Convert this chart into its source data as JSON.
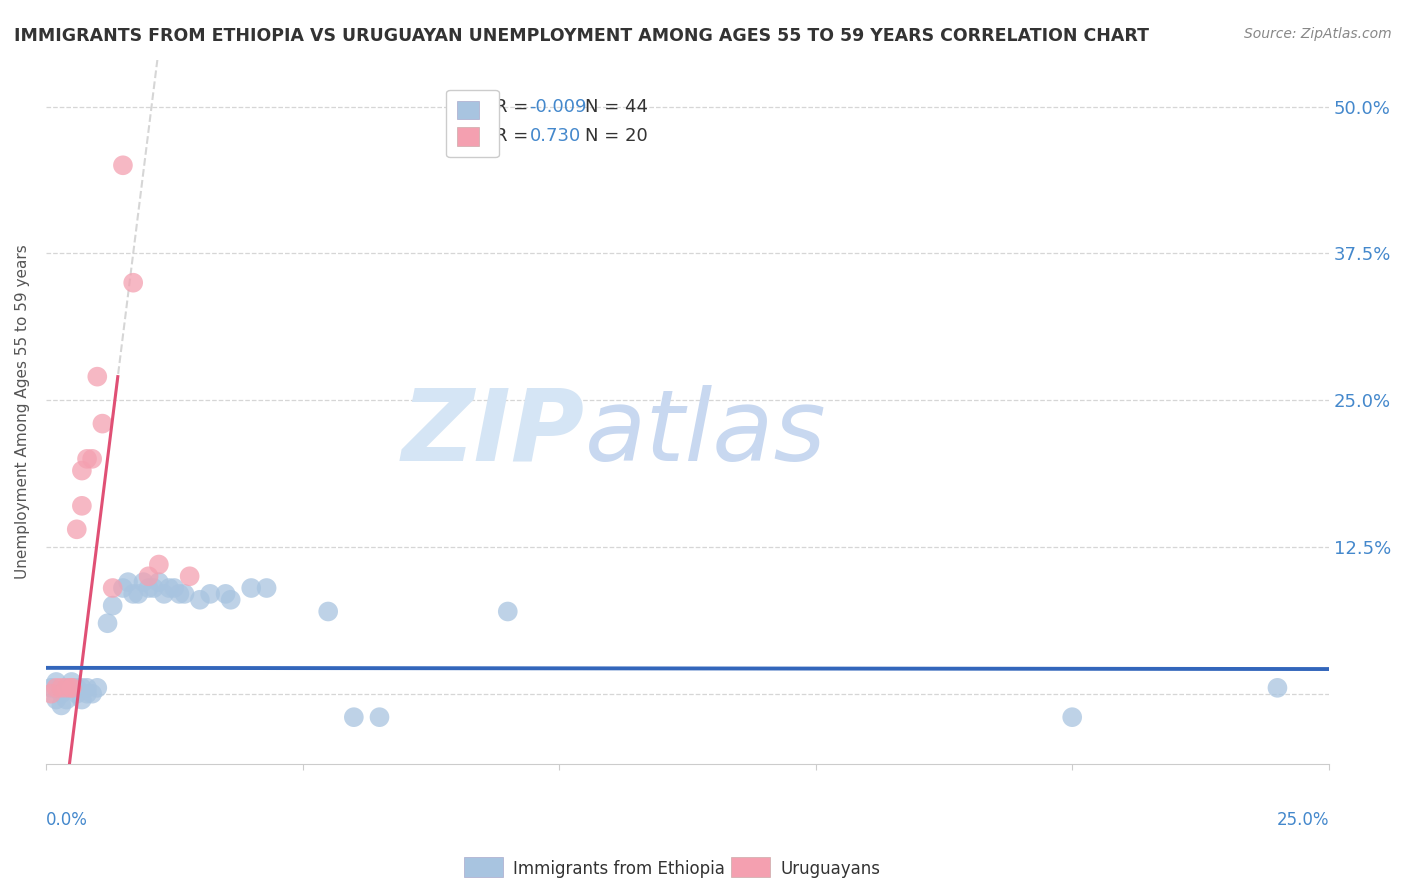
{
  "title": "IMMIGRANTS FROM ETHIOPIA VS URUGUAYAN UNEMPLOYMENT AMONG AGES 55 TO 59 YEARS CORRELATION CHART",
  "source": "Source: ZipAtlas.com",
  "ylabel": "Unemployment Among Ages 55 to 59 years",
  "y_ticks": [
    0.0,
    0.125,
    0.25,
    0.375,
    0.5
  ],
  "y_tick_labels": [
    "",
    "12.5%",
    "25.0%",
    "37.5%",
    "50.0%"
  ],
  "x_range": [
    0.0,
    0.25
  ],
  "y_range": [
    -0.06,
    0.54
  ],
  "blue_scatter": [
    [
      0.001,
      0.005
    ],
    [
      0.002,
      0.01
    ],
    [
      0.002,
      -0.005
    ],
    [
      0.003,
      0.0
    ],
    [
      0.003,
      -0.01
    ],
    [
      0.004,
      0.005
    ],
    [
      0.004,
      -0.005
    ],
    [
      0.005,
      0.005
    ],
    [
      0.005,
      0.01
    ],
    [
      0.006,
      0.0
    ],
    [
      0.006,
      0.005
    ],
    [
      0.007,
      0.005
    ],
    [
      0.007,
      -0.005
    ],
    [
      0.008,
      0.0
    ],
    [
      0.008,
      0.005
    ],
    [
      0.009,
      0.0
    ],
    [
      0.01,
      0.005
    ],
    [
      0.012,
      0.06
    ],
    [
      0.013,
      0.075
    ],
    [
      0.015,
      0.09
    ],
    [
      0.016,
      0.095
    ],
    [
      0.017,
      0.085
    ],
    [
      0.018,
      0.085
    ],
    [
      0.019,
      0.095
    ],
    [
      0.02,
      0.09
    ],
    [
      0.021,
      0.09
    ],
    [
      0.022,
      0.095
    ],
    [
      0.023,
      0.085
    ],
    [
      0.024,
      0.09
    ],
    [
      0.025,
      0.09
    ],
    [
      0.026,
      0.085
    ],
    [
      0.027,
      0.085
    ],
    [
      0.03,
      0.08
    ],
    [
      0.032,
      0.085
    ],
    [
      0.035,
      0.085
    ],
    [
      0.036,
      0.08
    ],
    [
      0.04,
      0.09
    ],
    [
      0.043,
      0.09
    ],
    [
      0.055,
      0.07
    ],
    [
      0.06,
      -0.02
    ],
    [
      0.065,
      -0.02
    ],
    [
      0.09,
      0.07
    ],
    [
      0.2,
      -0.02
    ],
    [
      0.24,
      0.005
    ]
  ],
  "pink_scatter": [
    [
      0.001,
      0.0
    ],
    [
      0.002,
      0.005
    ],
    [
      0.003,
      0.005
    ],
    [
      0.004,
      0.005
    ],
    [
      0.005,
      0.005
    ],
    [
      0.005,
      0.005
    ],
    [
      0.006,
      0.14
    ],
    [
      0.007,
      0.16
    ],
    [
      0.007,
      0.19
    ],
    [
      0.008,
      0.2
    ],
    [
      0.009,
      0.2
    ],
    [
      0.01,
      0.27
    ],
    [
      0.011,
      0.23
    ],
    [
      0.013,
      0.09
    ],
    [
      0.015,
      0.45
    ],
    [
      0.017,
      0.35
    ],
    [
      0.02,
      0.1
    ],
    [
      0.022,
      0.11
    ],
    [
      0.028,
      0.1
    ]
  ],
  "blue_line_color": "#3366bb",
  "pink_line_color": "#e05075",
  "pink_dashed_color": "#cccccc",
  "scatter_blue_color": "#a8c4e0",
  "scatter_pink_color": "#f4a0b0",
  "bg_color": "#ffffff",
  "grid_color": "#cccccc",
  "watermark_zip_color": "#d5e5f5",
  "watermark_atlas_color": "#c8d8f0",
  "title_color": "#333333",
  "axis_tick_color": "#4488cc",
  "r_value_color": "#4488cc",
  "legend_box_color": "#cccccc"
}
